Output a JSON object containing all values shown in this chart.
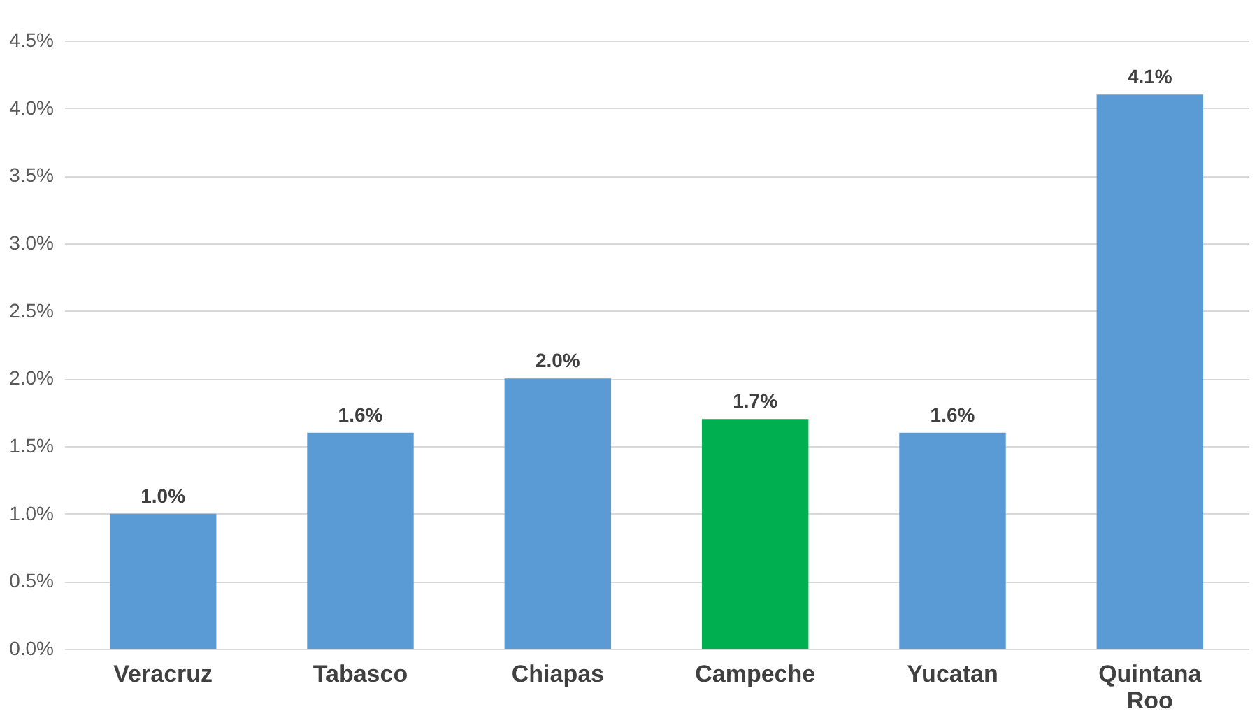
{
  "chart_data": {
    "type": "bar",
    "categories": [
      "Veracruz",
      "Tabasco",
      "Chiapas",
      "Campeche",
      "Yucatan",
      "Quintana Roo"
    ],
    "values": [
      1.0,
      1.6,
      2.0,
      1.7,
      1.6,
      4.1
    ],
    "colors": [
      "#5b9bd5",
      "#5b9bd5",
      "#5b9bd5",
      "#00b050",
      "#5b9bd5",
      "#5b9bd5"
    ],
    "value_labels": [
      "1.0%",
      "1.6%",
      "2.0%",
      "1.7%",
      "1.6%",
      "4.1%"
    ],
    "ylim": [
      0,
      4.5
    ],
    "yticks": [
      {
        "value": 0,
        "label": "0.0%"
      },
      {
        "value": 0.5,
        "label": "0.5%"
      },
      {
        "value": 1,
        "label": "1.0%"
      },
      {
        "value": 1.5,
        "label": "1.5%"
      },
      {
        "value": 2,
        "label": "2.0%"
      },
      {
        "value": 2.5,
        "label": "2.5%"
      },
      {
        "value": 3,
        "label": "3.0%"
      },
      {
        "value": 3.5,
        "label": "3.5%"
      },
      {
        "value": 4,
        "label": "4.0%"
      },
      {
        "value": 4.5,
        "label": "4.5%"
      }
    ],
    "grid": "y"
  }
}
